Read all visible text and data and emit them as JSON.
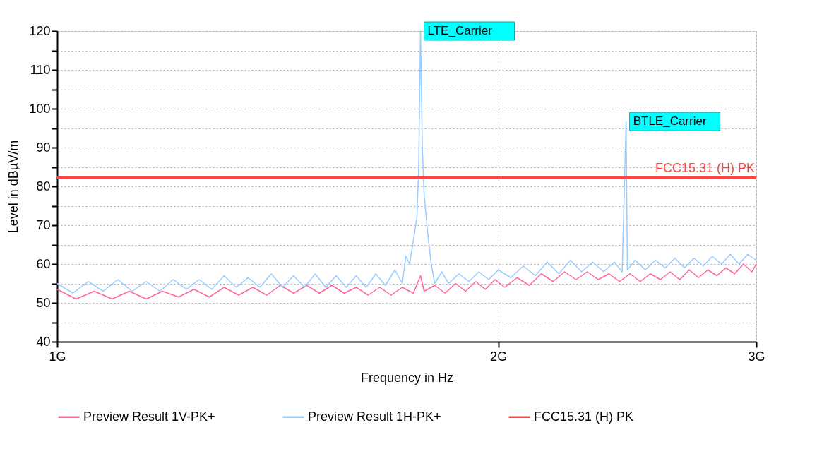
{
  "chart_data": {
    "type": "line",
    "xlabel": "Frequency in Hz",
    "ylabel": "Level in dBµV/m",
    "log": "x",
    "grid": true,
    "legend": "bottom",
    "line_style": "solid",
    "marker": "none",
    "xlim": [
      1,
      3
    ],
    "xticks": [
      {
        "value": 1,
        "label": "1G"
      },
      {
        "value": 2,
        "label": "2G"
      },
      {
        "value": 3,
        "label": "3G"
      }
    ],
    "ylim": [
      40,
      120
    ],
    "yticks": [
      40,
      {
        "value": 45,
        "label": null
      },
      50,
      {
        "value": 55,
        "label": null
      },
      60,
      {
        "value": 65,
        "label": null
      },
      70,
      {
        "value": 75,
        "label": null
      },
      80,
      {
        "value": 85,
        "label": null
      },
      90,
      {
        "value": 95,
        "label": null
      },
      100,
      {
        "value": 105,
        "label": null
      },
      110,
      {
        "value": 115,
        "label": null
      },
      120
    ],
    "series": [
      {
        "name": "Preview Result 1V-PK+",
        "color": "#ff6699",
        "x": [
          1.0,
          1.03,
          1.06,
          1.09,
          1.12,
          1.15,
          1.18,
          1.21,
          1.24,
          1.27,
          1.3,
          1.33,
          1.36,
          1.39,
          1.42,
          1.45,
          1.48,
          1.51,
          1.54,
          1.57,
          1.6,
          1.63,
          1.66,
          1.69,
          1.72,
          1.75,
          1.77,
          1.78,
          1.81,
          1.84,
          1.87,
          1.9,
          1.93,
          1.96,
          1.99,
          2.02,
          2.06,
          2.1,
          2.14,
          2.18,
          2.22,
          2.26,
          2.3,
          2.34,
          2.38,
          2.42,
          2.46,
          2.5,
          2.54,
          2.58,
          2.62,
          2.66,
          2.7,
          2.74,
          2.78,
          2.82,
          2.86,
          2.9,
          2.94,
          2.98,
          3.0
        ],
        "values": [
          53.5,
          51,
          53,
          51,
          53,
          51,
          53,
          51.5,
          53.5,
          51.5,
          54,
          52,
          54,
          52,
          54.5,
          52.5,
          54.5,
          52.5,
          54.5,
          52.5,
          54,
          52,
          54,
          52,
          54,
          52.5,
          57,
          53,
          54.5,
          52.5,
          55,
          53,
          55.5,
          53.5,
          56,
          54,
          56.5,
          54.5,
          57.5,
          55.5,
          58,
          56,
          58,
          56,
          57.5,
          55.5,
          57.5,
          55.5,
          57.5,
          56,
          58,
          56,
          58.5,
          56.5,
          58.5,
          57,
          59,
          57.5,
          60,
          58,
          60
        ]
      },
      {
        "name": "Preview Result 1H-PK+",
        "color": "#99ccff",
        "x": [
          1.0,
          1.025,
          1.05,
          1.075,
          1.1,
          1.125,
          1.15,
          1.175,
          1.2,
          1.225,
          1.25,
          1.275,
          1.3,
          1.325,
          1.35,
          1.375,
          1.4,
          1.425,
          1.45,
          1.475,
          1.5,
          1.525,
          1.55,
          1.575,
          1.6,
          1.625,
          1.65,
          1.675,
          1.7,
          1.72,
          1.73,
          1.74,
          1.75,
          1.76,
          1.765,
          1.77,
          1.775,
          1.78,
          1.79,
          1.8,
          1.81,
          1.83,
          1.85,
          1.88,
          1.91,
          1.94,
          1.97,
          2.0,
          2.04,
          2.08,
          2.12,
          2.16,
          2.2,
          2.24,
          2.28,
          2.32,
          2.36,
          2.4,
          2.43,
          2.445,
          2.45,
          2.48,
          2.52,
          2.56,
          2.6,
          2.64,
          2.68,
          2.72,
          2.76,
          2.8,
          2.84,
          2.88,
          2.92,
          2.96,
          3.0
        ],
        "values": [
          55,
          52.5,
          55.5,
          53,
          56,
          53,
          55.5,
          53,
          56,
          53.5,
          56,
          53.5,
          57,
          54,
          56.5,
          54,
          57.5,
          54,
          57,
          54,
          57.5,
          54,
          57,
          54,
          57,
          54,
          57.5,
          54.5,
          58.5,
          55,
          62,
          60,
          66,
          72,
          85,
          120,
          90,
          78,
          68,
          60,
          55,
          58,
          55,
          57.5,
          55.5,
          58,
          56,
          58.5,
          56.5,
          59.5,
          57,
          60.5,
          57.5,
          61,
          58,
          60.5,
          58,
          60.5,
          58,
          96.7,
          58.5,
          61,
          58.5,
          61,
          59,
          61.5,
          59,
          61.5,
          59.5,
          62,
          60,
          62.5,
          60,
          62.5,
          61
        ]
      },
      {
        "name": "FCC15.31 (H) PK",
        "color": "#ff4444",
        "x": [
          1,
          3
        ],
        "values": [
          82.2,
          82.2
        ]
      }
    ],
    "annotations": [
      {
        "text": "LTE_Carrier",
        "x": 1.77,
        "y": 120
      },
      {
        "text": "BTLE_Carrier",
        "x": 2.445,
        "y": 96.7
      },
      {
        "text": "FCC15.31 (H) PK",
        "x": 3,
        "y": 82.2
      }
    ]
  }
}
